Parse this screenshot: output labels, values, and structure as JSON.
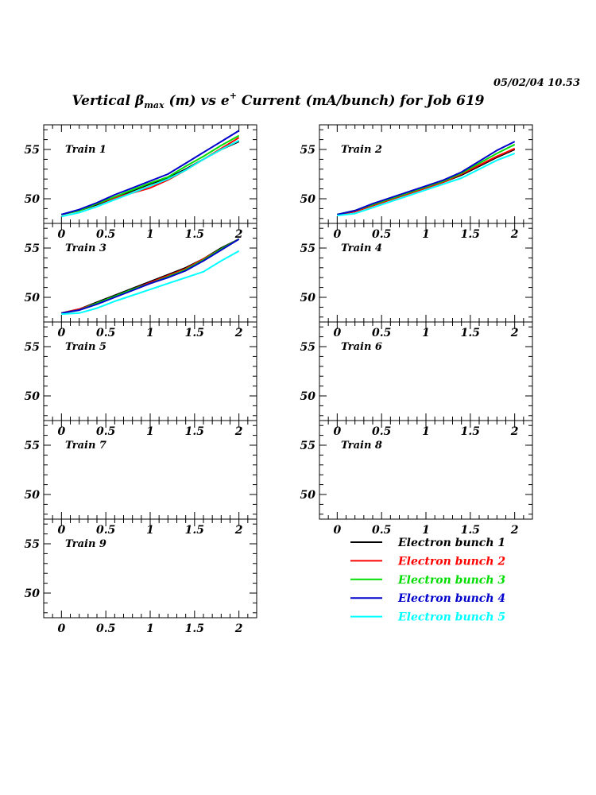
{
  "header": {
    "timestamp": "05/02/04   10.53",
    "title": {
      "prefix": "Vertical ",
      "beta": "β",
      "beta_sub": "max",
      "middle": " (m) vs e",
      "sup": "+",
      "suffix": " Current (mA/bunch) for Job 619"
    }
  },
  "chart_data": {
    "type": "line",
    "x_ticks": [
      "0",
      "0.5",
      "1",
      "1.5",
      "2"
    ],
    "y_ticks": [
      "50",
      "55"
    ],
    "xlim": [
      -0.2,
      2.2
    ],
    "ylim": [
      47.5,
      57.5
    ],
    "series_names": [
      "Electron bunch 1",
      "Electron bunch 2",
      "Electron bunch 3",
      "Electron bunch 4",
      "Electron bunch 5"
    ],
    "series_colors": [
      "#000000",
      "#ff0000",
      "#00dd00",
      "#0000cc",
      "#00ffff"
    ],
    "x": [
      0,
      0.2,
      0.4,
      0.6,
      0.8,
      1.0,
      1.2,
      1.4,
      1.6,
      1.8,
      2.0
    ],
    "panels": [
      {
        "label": "Train 1",
        "series": [
          {
            "name": "Electron bunch 1",
            "values": [
              48.4,
              48.8,
              49.4,
              50.1,
              50.8,
              51.5,
              52.1,
              53.0,
              54.0,
              55.0,
              55.8
            ]
          },
          {
            "name": "Electron bunch 2",
            "values": [
              48.4,
              48.8,
              49.5,
              50.1,
              50.6,
              51.1,
              51.9,
              52.9,
              54.0,
              55.1,
              56.2
            ]
          },
          {
            "name": "Electron bunch 3",
            "values": [
              48.4,
              48.8,
              49.5,
              50.2,
              50.9,
              51.6,
              52.2,
              53.3,
              54.3,
              55.4,
              56.4
            ]
          },
          {
            "name": "Electron bunch 4",
            "values": [
              48.4,
              48.9,
              49.6,
              50.4,
              51.1,
              51.8,
              52.5,
              53.6,
              54.7,
              55.8,
              56.9
            ]
          },
          {
            "name": "Electron bunch 5",
            "values": [
              48.2,
              48.6,
              49.2,
              49.9,
              50.6,
              51.3,
              52.0,
              52.9,
              54.0,
              55.0,
              55.9
            ]
          }
        ]
      },
      {
        "label": "Train 2",
        "series": [
          {
            "name": "Electron bunch 1",
            "values": [
              48.4,
              48.7,
              49.3,
              49.9,
              50.5,
              51.1,
              51.7,
              52.4,
              53.3,
              54.2,
              55.0
            ]
          },
          {
            "name": "Electron bunch 2",
            "values": [
              48.4,
              48.7,
              49.3,
              49.9,
              50.5,
              51.1,
              51.7,
              52.5,
              53.4,
              54.3,
              55.1
            ]
          },
          {
            "name": "Electron bunch 3",
            "values": [
              48.4,
              48.8,
              49.4,
              50.0,
              50.6,
              51.2,
              51.8,
              52.6,
              53.6,
              54.6,
              55.5
            ]
          },
          {
            "name": "Electron bunch 4",
            "values": [
              48.4,
              48.8,
              49.5,
              50.1,
              50.7,
              51.3,
              51.9,
              52.7,
              53.8,
              54.9,
              55.8
            ]
          },
          {
            "name": "Electron bunch 5",
            "values": [
              48.3,
              48.5,
              49.1,
              49.7,
              50.3,
              50.9,
              51.5,
              52.1,
              53.0,
              53.9,
              54.6
            ]
          }
        ]
      },
      {
        "label": "Train 3",
        "series": [
          {
            "name": "Electron bunch 1",
            "values": [
              48.4,
              48.8,
              49.5,
              50.2,
              50.9,
              51.6,
              52.3,
              53.0,
              53.9,
              55.0,
              55.9
            ]
          },
          {
            "name": "Electron bunch 2",
            "values": [
              48.4,
              48.8,
              49.4,
              50.1,
              50.8,
              51.5,
              52.2,
              52.9,
              53.9,
              54.9,
              55.9
            ]
          },
          {
            "name": "Electron bunch 3",
            "values": [
              48.4,
              48.7,
              49.4,
              50.1,
              50.8,
              51.4,
              52.1,
              52.8,
              53.8,
              54.9,
              55.9
            ]
          },
          {
            "name": "Electron bunch 4",
            "values": [
              48.4,
              48.7,
              49.3,
              50.0,
              50.7,
              51.4,
              52.0,
              52.7,
              53.7,
              54.8,
              55.9
            ]
          },
          {
            "name": "Electron bunch 5",
            "values": [
              48.3,
              48.4,
              48.9,
              49.6,
              50.2,
              50.8,
              51.4,
              52.0,
              52.6,
              53.7,
              54.7
            ]
          }
        ]
      },
      {
        "label": "Train 4",
        "series": []
      },
      {
        "label": "Train 5",
        "series": []
      },
      {
        "label": "Train 6",
        "series": []
      },
      {
        "label": "Train 7",
        "series": []
      },
      {
        "label": "Train 8",
        "series": []
      },
      {
        "label": "Train 9",
        "series": []
      }
    ]
  }
}
